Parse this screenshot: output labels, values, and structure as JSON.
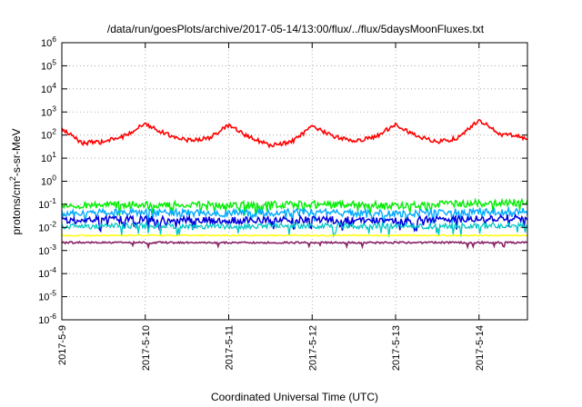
{
  "chart_data": {
    "type": "line",
    "title": "/data/run/goesPlots/archive/2017-05-14/13:00/flux/../flux/5daysMoonFluxes.txt",
    "xlabel": "Coordinated Universal Time (UTC)",
    "ylabel_prefix": "protons/cm",
    "ylabel_sup": "2",
    "ylabel_suffix": "-s-sr-MeV",
    "y_scale": "log",
    "ylim_exp": [
      -6,
      6
    ],
    "y_ticks": [
      {
        "base": "10",
        "exp": "-6",
        "value": 1e-06
      },
      {
        "base": "10",
        "exp": "-5",
        "value": 1e-05
      },
      {
        "base": "10",
        "exp": "-4",
        "value": 0.0001
      },
      {
        "base": "10",
        "exp": "-3",
        "value": 0.001
      },
      {
        "base": "10",
        "exp": "-2",
        "value": 0.01
      },
      {
        "base": "10",
        "exp": "-1",
        "value": 0.1
      },
      {
        "base": "10",
        "exp": "0",
        "value": 1
      },
      {
        "base": "10",
        "exp": "1",
        "value": 10
      },
      {
        "base": "10",
        "exp": "2",
        "value": 100
      },
      {
        "base": "10",
        "exp": "3",
        "value": 1000
      },
      {
        "base": "10",
        "exp": "4",
        "value": 10000
      },
      {
        "base": "10",
        "exp": "5",
        "value": 100000
      },
      {
        "base": "10",
        "exp": "6",
        "value": 1000000
      }
    ],
    "x_ticks": [
      "2017-5-9",
      "2017-5-10",
      "2017-5-11",
      "2017-5-12",
      "2017-5-13",
      "2017-5-14"
    ],
    "xlim_days": [
      0,
      5.58
    ],
    "grid": true,
    "series": [
      {
        "color": "#ff0000",
        "x": [
          0,
          0.25,
          0.5,
          0.75,
          1.0,
          1.25,
          1.5,
          1.75,
          2.0,
          2.25,
          2.5,
          2.75,
          3.0,
          3.25,
          3.5,
          3.75,
          4.0,
          4.25,
          4.5,
          4.75,
          5.0,
          5.25,
          5.5,
          5.58
        ],
        "y": [
          180,
          45,
          50,
          90,
          320,
          110,
          60,
          70,
          260,
          80,
          35,
          50,
          230,
          90,
          55,
          80,
          300,
          90,
          50,
          75,
          450,
          110,
          90,
          60
        ]
      },
      {
        "color": "#00ee00",
        "x": [
          0,
          1,
          2,
          3,
          4,
          5,
          5.58
        ],
        "y": [
          0.09,
          0.1,
          0.09,
          0.1,
          0.09,
          0.11,
          0.12
        ]
      },
      {
        "color": "#00aaff",
        "x": [
          0,
          1,
          2,
          3,
          4,
          5,
          5.58
        ],
        "y": [
          0.04,
          0.045,
          0.04,
          0.045,
          0.04,
          0.05,
          0.05
        ]
      },
      {
        "color": "#0000dd",
        "x": [
          0,
          1,
          2,
          3,
          4,
          5,
          5.58
        ],
        "y": [
          0.02,
          0.022,
          0.02,
          0.022,
          0.02,
          0.025,
          0.025
        ]
      },
      {
        "color": "#00c8c8",
        "x": [
          0,
          1,
          2,
          3,
          4,
          5,
          5.58
        ],
        "y": [
          0.011,
          0.012,
          0.011,
          0.012,
          0.011,
          0.012,
          0.012
        ]
      },
      {
        "color": "#ffff00",
        "x": [
          0,
          1,
          2,
          3,
          4,
          5,
          5.58
        ],
        "y": [
          0.0045,
          0.0045,
          0.0045,
          0.0045,
          0.0045,
          0.0045,
          0.0045
        ]
      },
      {
        "color": "#882266",
        "x": [
          0,
          1,
          2,
          3,
          4,
          5,
          5.58
        ],
        "y": [
          0.0022,
          0.0022,
          0.0022,
          0.0022,
          0.0022,
          0.0022,
          0.0022
        ]
      }
    ]
  }
}
